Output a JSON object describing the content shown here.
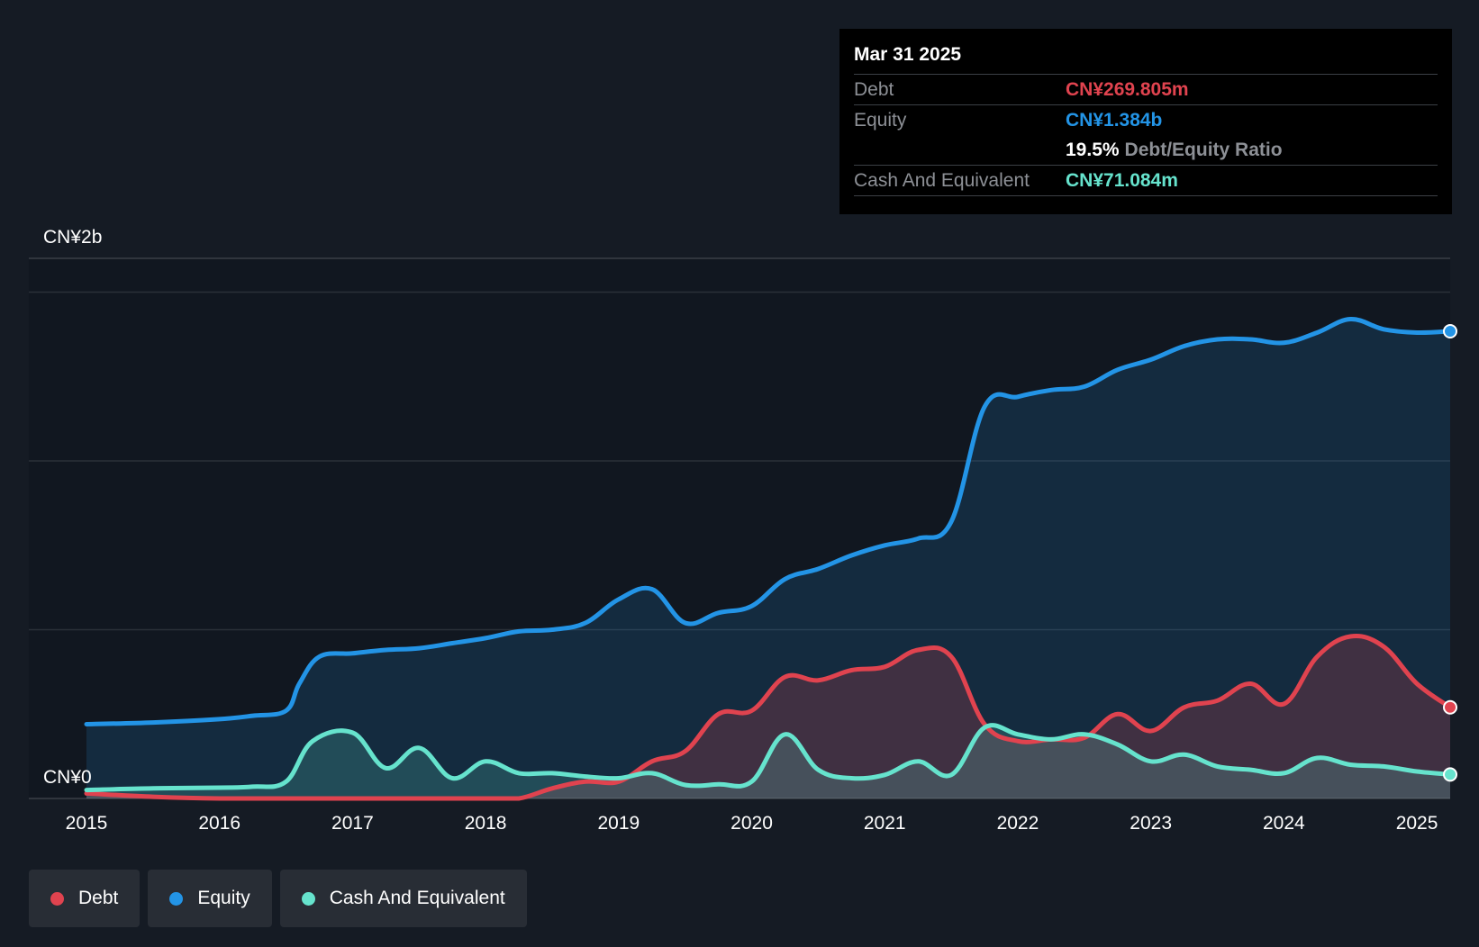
{
  "colors": {
    "debt": "#e0434f",
    "equity": "#2394e6",
    "cash": "#66e3cd",
    "background": "#151b24",
    "grid": "#3a3f46"
  },
  "tooltip": {
    "date": "Mar 31 2025",
    "debt_label": "Debt",
    "debt_value": "CN¥269.805m",
    "equity_label": "Equity",
    "equity_value": "CN¥1.384b",
    "ratio_value": "19.5%",
    "ratio_label": "Debt/Equity Ratio",
    "cash_label": "Cash And Equivalent",
    "cash_value": "CN¥71.084m"
  },
  "legend": [
    {
      "label": "Debt",
      "color": "#e0434f"
    },
    {
      "label": "Equity",
      "color": "#2394e6"
    },
    {
      "label": "Cash And Equivalent",
      "color": "#66e3cd"
    }
  ],
  "chart_data": {
    "type": "area",
    "title": "",
    "xlabel": "",
    "ylabel": "",
    "y_top_label": "CN¥2b",
    "y_bottom_label": "CN¥0",
    "ylim": [
      0,
      1.6
    ],
    "xlim": [
      2015.0,
      2025.25
    ],
    "x_ticks": [
      2015,
      2016,
      2017,
      2018,
      2019,
      2020,
      2021,
      2022,
      2023,
      2024,
      2025
    ],
    "x_tick_labels": [
      "2015",
      "2016",
      "2017",
      "2018",
      "2019",
      "2020",
      "2021",
      "2022",
      "2023",
      "2024",
      "2025"
    ],
    "grid_values": [
      0.5,
      1.0,
      1.5
    ],
    "series": [
      {
        "name": "Equity",
        "key": "equity",
        "x": [
          2015.0,
          2015.5,
          2016.0,
          2016.25,
          2016.5,
          2016.6,
          2016.75,
          2017.0,
          2017.25,
          2017.5,
          2017.75,
          2018.0,
          2018.25,
          2018.5,
          2018.75,
          2019.0,
          2019.25,
          2019.5,
          2019.75,
          2020.0,
          2020.25,
          2020.5,
          2020.75,
          2021.0,
          2021.25,
          2021.5,
          2021.75,
          2022.0,
          2022.25,
          2022.5,
          2022.75,
          2023.0,
          2023.25,
          2023.5,
          2023.75,
          2024.0,
          2024.25,
          2024.5,
          2024.75,
          2025.0,
          2025.25
        ],
        "values": [
          0.22,
          0.225,
          0.235,
          0.245,
          0.26,
          0.34,
          0.42,
          0.43,
          0.44,
          0.445,
          0.46,
          0.475,
          0.495,
          0.5,
          0.52,
          0.59,
          0.62,
          0.52,
          0.55,
          0.57,
          0.65,
          0.68,
          0.72,
          0.75,
          0.77,
          0.82,
          1.16,
          1.19,
          1.21,
          1.22,
          1.27,
          1.3,
          1.34,
          1.36,
          1.36,
          1.35,
          1.38,
          1.42,
          1.39,
          1.38,
          1.384
        ]
      },
      {
        "name": "Debt",
        "key": "debt",
        "x": [
          2015.0,
          2015.5,
          2016.0,
          2016.5,
          2017.0,
          2017.5,
          2018.0,
          2018.25,
          2018.5,
          2018.75,
          2019.0,
          2019.25,
          2019.5,
          2019.75,
          2020.0,
          2020.25,
          2020.5,
          2020.75,
          2021.0,
          2021.25,
          2021.5,
          2021.75,
          2022.0,
          2022.25,
          2022.5,
          2022.75,
          2023.0,
          2023.25,
          2023.5,
          2023.75,
          2024.0,
          2024.25,
          2024.5,
          2024.75,
          2025.0,
          2025.25
        ],
        "values": [
          0.015,
          0.005,
          0.0,
          0.0,
          0.0,
          0.0,
          0.0,
          0.0,
          0.03,
          0.05,
          0.05,
          0.11,
          0.14,
          0.25,
          0.26,
          0.36,
          0.35,
          0.38,
          0.39,
          0.44,
          0.42,
          0.22,
          0.17,
          0.175,
          0.18,
          0.25,
          0.2,
          0.27,
          0.29,
          0.34,
          0.28,
          0.42,
          0.48,
          0.45,
          0.34,
          0.27
        ]
      },
      {
        "name": "Cash And Equivalent",
        "key": "cash",
        "x": [
          2015.0,
          2015.5,
          2016.0,
          2016.25,
          2016.5,
          2016.7,
          2017.0,
          2017.25,
          2017.5,
          2017.75,
          2018.0,
          2018.25,
          2018.5,
          2018.75,
          2019.0,
          2019.25,
          2019.5,
          2019.75,
          2020.0,
          2020.25,
          2020.5,
          2020.75,
          2021.0,
          2021.25,
          2021.5,
          2021.75,
          2022.0,
          2022.25,
          2022.5,
          2022.75,
          2023.0,
          2023.25,
          2023.5,
          2023.75,
          2024.0,
          2024.25,
          2024.5,
          2024.75,
          2025.0,
          2025.25
        ],
        "values": [
          0.025,
          0.03,
          0.032,
          0.035,
          0.05,
          0.17,
          0.195,
          0.09,
          0.15,
          0.06,
          0.11,
          0.075,
          0.075,
          0.065,
          0.06,
          0.075,
          0.04,
          0.042,
          0.05,
          0.19,
          0.085,
          0.06,
          0.07,
          0.11,
          0.07,
          0.21,
          0.19,
          0.175,
          0.19,
          0.16,
          0.11,
          0.13,
          0.095,
          0.085,
          0.075,
          0.12,
          0.1,
          0.095,
          0.08,
          0.071
        ]
      }
    ],
    "end_markers": true
  }
}
